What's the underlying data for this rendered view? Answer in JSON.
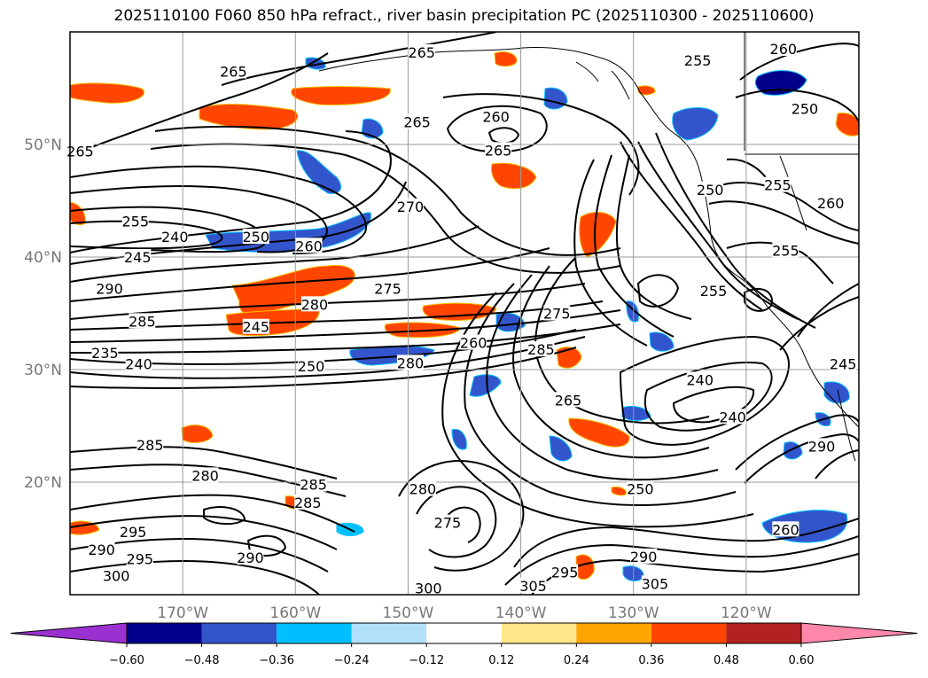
{
  "chart_data": {
    "type": "contour_map",
    "title": "2025110100 F060 850 hPa refract., river basin precipitation PC (2025110300 - 2025110600)",
    "lat_ticks": [
      {
        "value": 50,
        "label": "50°N"
      },
      {
        "value": 40,
        "label": "40°N"
      },
      {
        "value": 30,
        "label": "30°N"
      },
      {
        "value": 20,
        "label": "20°N"
      }
    ],
    "lon_ticks": [
      {
        "value": -170,
        "label": "170°W"
      },
      {
        "value": -160,
        "label": "160°W"
      },
      {
        "value": -150,
        "label": "150°W"
      },
      {
        "value": -140,
        "label": "140°W"
      },
      {
        "value": -130,
        "label": "130°W"
      },
      {
        "value": -120,
        "label": "120°W"
      }
    ],
    "lon_range": [
      -180,
      -110
    ],
    "lat_range": [
      10,
      60
    ],
    "colorbar": {
      "levels": [
        -0.6,
        -0.48,
        -0.36,
        -0.24,
        -0.12,
        0.12,
        0.24,
        0.36,
        0.48,
        0.6
      ],
      "tick_labels": [
        "−0.60",
        "−0.48",
        "−0.36",
        "−0.24",
        "−0.12",
        "0.12",
        "0.24",
        "0.36",
        "0.48",
        "0.60"
      ],
      "colors": [
        "#9b30d0",
        "#00008b",
        "#3355cc",
        "#00bfff",
        "#b0e0fa",
        "#ffffff",
        "#ffe68a",
        "#ffa500",
        "#ff4500",
        "#b22222",
        "#ff88aa"
      ],
      "extend": "both"
    },
    "contour_labels": [
      {
        "text": "265",
        "lon": -165.5,
        "lat": 56.5
      },
      {
        "text": "265",
        "lon": -148.8,
        "lat": 58.2
      },
      {
        "text": "265",
        "lon": -149.2,
        "lat": 52.0
      },
      {
        "text": "260",
        "lon": -142.2,
        "lat": 52.5
      },
      {
        "text": "265",
        "lon": -142.0,
        "lat": 49.5
      },
      {
        "text": "255",
        "lon": -124.3,
        "lat": 57.5
      },
      {
        "text": "260",
        "lon": -116.7,
        "lat": 58.5
      },
      {
        "text": "250",
        "lon": -114.8,
        "lat": 53.2
      },
      {
        "text": "265",
        "lon": -179.1,
        "lat": 49.4
      },
      {
        "text": "255",
        "lon": -174.2,
        "lat": 43.2
      },
      {
        "text": "240",
        "lon": -170.7,
        "lat": 41.8
      },
      {
        "text": "245",
        "lon": -174.0,
        "lat": 40.0
      },
      {
        "text": "250",
        "lon": -163.5,
        "lat": 41.8
      },
      {
        "text": "260",
        "lon": -158.8,
        "lat": 41.0
      },
      {
        "text": "270",
        "lon": -149.8,
        "lat": 44.5
      },
      {
        "text": "275",
        "lon": -151.8,
        "lat": 37.2
      },
      {
        "text": "290",
        "lon": -176.5,
        "lat": 37.2
      },
      {
        "text": "285",
        "lon": -173.6,
        "lat": 34.3
      },
      {
        "text": "280",
        "lon": -158.3,
        "lat": 35.8
      },
      {
        "text": "245",
        "lon": -163.5,
        "lat": 33.8
      },
      {
        "text": "235",
        "lon": -176.9,
        "lat": 31.5
      },
      {
        "text": "240",
        "lon": -173.9,
        "lat": 30.5
      },
      {
        "text": "250",
        "lon": -158.6,
        "lat": 30.3
      },
      {
        "text": "260",
        "lon": -144.2,
        "lat": 32.4
      },
      {
        "text": "280",
        "lon": -149.8,
        "lat": 30.6
      },
      {
        "text": "285",
        "lon": -138.2,
        "lat": 31.8
      },
      {
        "text": "275",
        "lon": -136.8,
        "lat": 35.0
      },
      {
        "text": "265",
        "lon": -135.8,
        "lat": 27.3
      },
      {
        "text": "250",
        "lon": -123.2,
        "lat": 46.0
      },
      {
        "text": "255",
        "lon": -117.2,
        "lat": 46.4
      },
      {
        "text": "260",
        "lon": -112.5,
        "lat": 44.8
      },
      {
        "text": "255",
        "lon": -116.5,
        "lat": 40.6
      },
      {
        "text": "255",
        "lon": -122.9,
        "lat": 37.0
      },
      {
        "text": "240",
        "lon": -124.1,
        "lat": 29.1
      },
      {
        "text": "240",
        "lon": -121.2,
        "lat": 25.8
      },
      {
        "text": "245",
        "lon": -111.4,
        "lat": 30.5
      },
      {
        "text": "285",
        "lon": -172.9,
        "lat": 23.3
      },
      {
        "text": "280",
        "lon": -168.0,
        "lat": 20.6
      },
      {
        "text": "285",
        "lon": -158.4,
        "lat": 19.8
      },
      {
        "text": "285",
        "lon": -158.9,
        "lat": 18.2
      },
      {
        "text": "280",
        "lon": -148.7,
        "lat": 19.4
      },
      {
        "text": "275",
        "lon": -146.5,
        "lat": 16.4
      },
      {
        "text": "295",
        "lon": -174.4,
        "lat": 15.6
      },
      {
        "text": "290",
        "lon": -177.2,
        "lat": 14.0
      },
      {
        "text": "295",
        "lon": -173.8,
        "lat": 13.2
      },
      {
        "text": "290",
        "lon": -164.0,
        "lat": 13.3
      },
      {
        "text": "300",
        "lon": -175.9,
        "lat": 11.7
      },
      {
        "text": "300",
        "lon": -148.2,
        "lat": 10.6
      },
      {
        "text": "305",
        "lon": -138.9,
        "lat": 10.8
      },
      {
        "text": "295",
        "lon": -136.1,
        "lat": 12.0
      },
      {
        "text": "305",
        "lon": -128.1,
        "lat": 11.0
      },
      {
        "text": "290",
        "lon": -129.1,
        "lat": 13.4
      },
      {
        "text": "250",
        "lon": -129.4,
        "lat": 19.4
      },
      {
        "text": "260",
        "lon": -116.5,
        "lat": 15.8
      },
      {
        "text": "290",
        "lon": -113.3,
        "lat": 23.2
      }
    ]
  }
}
